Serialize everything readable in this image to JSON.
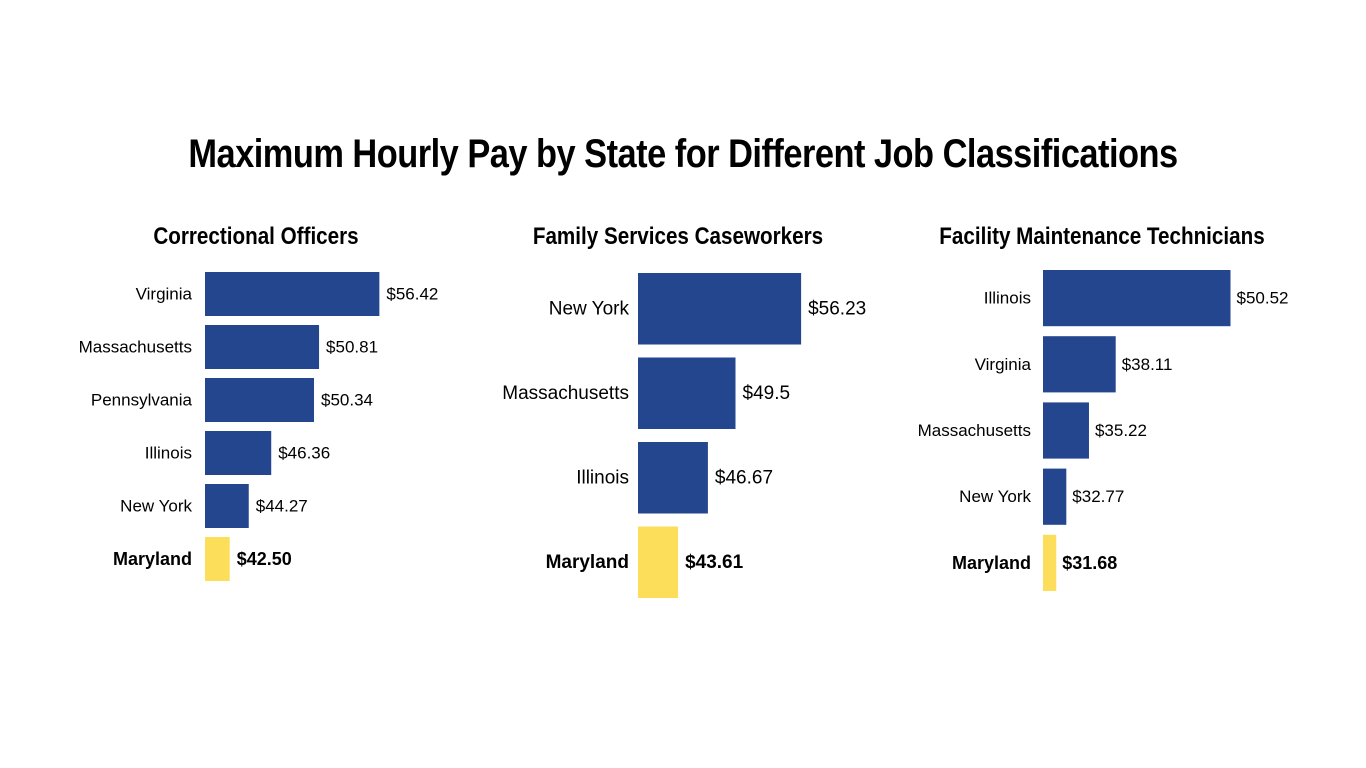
{
  "title": "Maximum Hourly Pay by State for Different Job Classifications",
  "colors": {
    "bar": "#24468E",
    "highlight": "#FDDE5B",
    "text": "#000000",
    "background": "#FFFFFF"
  },
  "chart_data": [
    {
      "type": "bar",
      "orientation": "horizontal",
      "title": "Correctional Officers",
      "categories": [
        "Virginia",
        "Massachusetts",
        "Pennsylvania",
        "Illinois",
        "New York",
        "Maryland"
      ],
      "values": [
        56.42,
        50.81,
        50.34,
        46.36,
        44.27,
        42.5
      ],
      "value_labels": [
        "$56.42",
        "$50.81",
        "$50.34",
        "$46.36",
        "$44.27",
        "$42.50"
      ],
      "highlight": "Maryland",
      "xlabel": "",
      "ylabel": "",
      "grid": false
    },
    {
      "type": "bar",
      "orientation": "horizontal",
      "title": "Family Services Caseworkers",
      "categories": [
        "New York",
        "Massachusetts",
        "Illinois",
        "Maryland"
      ],
      "values": [
        56.23,
        49.5,
        46.67,
        43.61
      ],
      "value_labels": [
        "$56.23",
        "$49.5",
        "$46.67",
        "$43.61"
      ],
      "highlight": "Maryland",
      "xlabel": "",
      "ylabel": "",
      "grid": false
    },
    {
      "type": "bar",
      "orientation": "horizontal",
      "title": "Facility Maintenance Technicians",
      "categories": [
        "Illinois",
        "Virginia",
        "Massachusetts",
        "New York",
        "Maryland"
      ],
      "values": [
        50.52,
        38.11,
        35.22,
        32.77,
        31.68
      ],
      "value_labels": [
        "$50.52",
        "$38.11",
        "$35.22",
        "$32.77",
        "$31.68"
      ],
      "highlight": "Maryland",
      "xlabel": "",
      "ylabel": "",
      "grid": false
    }
  ]
}
